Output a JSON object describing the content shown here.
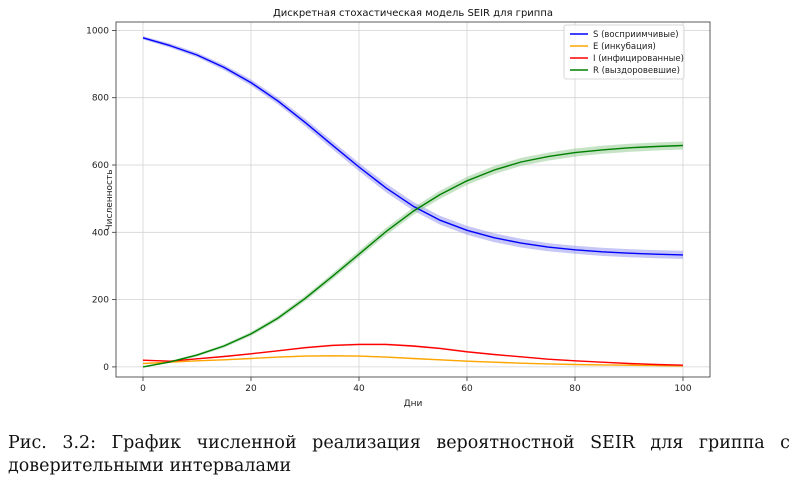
{
  "chart_data": {
    "type": "line",
    "title": "Дискретная стохастическая модель SEIR для гриппа",
    "xlabel": "Дни",
    "ylabel": "Численность",
    "xlim": [
      -5,
      105
    ],
    "ylim": [
      -30,
      1025
    ],
    "xticks": [
      0,
      20,
      40,
      60,
      80,
      100
    ],
    "yticks": [
      0,
      200,
      400,
      600,
      800,
      1000
    ],
    "grid": true,
    "legend": "top-right",
    "x": [
      0,
      5,
      10,
      15,
      20,
      25,
      30,
      35,
      40,
      45,
      50,
      55,
      60,
      65,
      70,
      75,
      80,
      85,
      90,
      95,
      100
    ],
    "series": [
      {
        "name": "S (восприимчивые)",
        "color": "#0000ff",
        "band_color": "#8080ee",
        "values": [
          978,
          955,
          927,
          890,
          845,
          790,
          727,
          660,
          594,
          532,
          478,
          436,
          406,
          384,
          368,
          356,
          348,
          342,
          338,
          335,
          333
        ],
        "band": [
          5,
          6,
          7,
          8,
          9,
          10,
          11,
          12,
          12,
          13,
          13,
          13,
          13,
          13,
          13,
          12,
          12,
          12,
          12,
          12,
          12
        ]
      },
      {
        "name": "E (инкубация)",
        "color": "#ffa500",
        "band_color": "#ffd27f",
        "values": [
          10,
          14,
          18,
          21,
          25,
          29,
          32,
          33,
          32,
          29,
          25,
          21,
          17,
          14,
          11,
          9,
          7,
          6,
          5,
          4,
          3
        ],
        "band": [
          1,
          1,
          1,
          1,
          1,
          2,
          2,
          2,
          2,
          2,
          2,
          2,
          2,
          2,
          1,
          1,
          1,
          1,
          1,
          1,
          1
        ]
      },
      {
        "name": "I (инфицированные)",
        "color": "#ff0000",
        "band_color": "#ff9090",
        "values": [
          20,
          17,
          24,
          31,
          39,
          48,
          57,
          64,
          67,
          67,
          62,
          55,
          45,
          37,
          30,
          23,
          18,
          14,
          10,
          7,
          5
        ],
        "band": [
          1,
          1,
          2,
          2,
          2,
          2,
          3,
          3,
          3,
          3,
          3,
          3,
          3,
          2,
          2,
          2,
          2,
          1,
          1,
          1,
          1
        ]
      },
      {
        "name": "R (выздоровевшие)",
        "color": "#008000",
        "band_color": "#80c080",
        "values": [
          0,
          15,
          35,
          62,
          98,
          145,
          203,
          268,
          335,
          402,
          462,
          512,
          553,
          585,
          609,
          625,
          637,
          645,
          651,
          655,
          658
        ],
        "band": [
          2,
          3,
          4,
          5,
          6,
          7,
          8,
          9,
          10,
          11,
          11,
          12,
          12,
          12,
          12,
          12,
          12,
          12,
          12,
          12,
          12
        ]
      }
    ]
  },
  "caption": "Рис. 3.2: График численной реализация вероятностной SEIR для гриппа с доверительными интервалами"
}
